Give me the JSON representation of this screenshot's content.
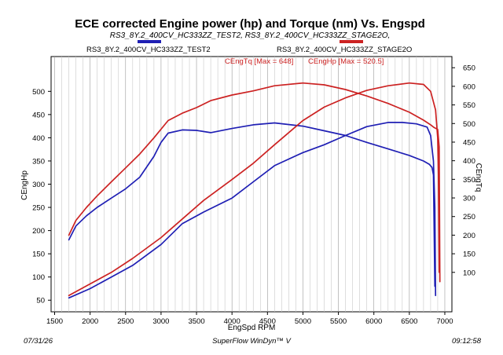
{
  "chart_data": {
    "type": "line",
    "title": "ECE corrected Engine power (hp) and Torque (nm) Vs. Engspd",
    "subtitle": "RS3_8Y.2_400CV_HC333ZZ_TEST2, RS3_8Y.2_400CV_HC333ZZ_STAGE2O,",
    "xlabel": "EngSpd RPM",
    "ylabel_left": "CEngHp",
    "ylabel_right": "CEngTq",
    "xlim": [
      1450,
      7100
    ],
    "ylim_left": [
      25,
      575
    ],
    "ylim_right": [
      -6,
      680
    ],
    "x_ticks": [
      1500,
      2000,
      2500,
      3000,
      3500,
      4000,
      4500,
      5000,
      5500,
      6000,
      6500,
      7000
    ],
    "y_ticks_left": [
      50,
      100,
      150,
      200,
      250,
      300,
      350,
      400,
      450,
      500
    ],
    "y_ticks_right": [
      100,
      150,
      200,
      250,
      300,
      350,
      400,
      450,
      500,
      550,
      600,
      650
    ],
    "grid": true,
    "legend": [
      {
        "name": "RS3_8Y.2_400CV_HC333ZZ_TEST2",
        "color": "#1f1fb4"
      },
      {
        "name": "RS3_8Y.2_400CV_HC333ZZ_STAGE2O",
        "color": "#cc2222"
      }
    ],
    "annotations": [
      {
        "text": "CEngTq [Max = 648]",
        "color": "#cc2222"
      },
      {
        "text": "CEngHp [Max = 520.5]",
        "color": "#cc2222"
      }
    ],
    "series": [
      {
        "id": "stage2-torque",
        "color": "#cc2222",
        "axis": "left",
        "x": [
          1700,
          1800,
          1950,
          2100,
          2300,
          2500,
          2700,
          2900,
          3100,
          3300,
          3500,
          3700,
          4000,
          4300,
          4600,
          5000,
          5300,
          5600,
          5900,
          6200,
          6500,
          6700,
          6800,
          6850,
          6900,
          6920,
          6930
        ],
        "y": [
          190,
          222,
          250,
          275,
          305,
          335,
          365,
          400,
          437,
          453,
          465,
          480,
          492,
          501,
          512,
          518,
          514,
          504,
          490,
          474,
          455,
          438,
          428,
          422,
          418,
          380,
          90
        ]
      },
      {
        "id": "test2-torque",
        "color": "#1f1fb4",
        "axis": "left",
        "x": [
          1700,
          1800,
          1950,
          2100,
          2300,
          2500,
          2700,
          2900,
          3000,
          3100,
          3300,
          3500,
          3700,
          4000,
          4300,
          4600,
          5000,
          5300,
          5600,
          5900,
          6200,
          6500,
          6700,
          6780,
          6820,
          6840,
          6860
        ],
        "y": [
          180,
          210,
          232,
          250,
          270,
          290,
          315,
          360,
          390,
          410,
          417,
          416,
          411,
          420,
          428,
          432,
          425,
          415,
          405,
          390,
          376,
          362,
          350,
          343,
          336,
          320,
          80
        ]
      },
      {
        "id": "stage2-power",
        "color": "#cc2222",
        "axis": "left",
        "x": [
          1700,
          2000,
          2300,
          2600,
          3000,
          3300,
          3600,
          4000,
          4300,
          4600,
          5000,
          5300,
          5600,
          5900,
          6200,
          6500,
          6700,
          6800,
          6870,
          6900,
          6910,
          6920
        ],
        "y": [
          60,
          85,
          110,
          140,
          185,
          225,
          265,
          310,
          345,
          385,
          437,
          466,
          486,
          502,
          512,
          518,
          515,
          500,
          460,
          400,
          320,
          110
        ]
      },
      {
        "id": "test2-power",
        "color": "#1f1fb4",
        "axis": "left",
        "x": [
          1700,
          2000,
          2300,
          2600,
          3000,
          3300,
          3600,
          4000,
          4300,
          4600,
          5000,
          5300,
          5600,
          5900,
          6200,
          6400,
          6600,
          6750,
          6800,
          6840,
          6860,
          6870
        ],
        "y": [
          55,
          75,
          100,
          125,
          170,
          215,
          240,
          270,
          305,
          340,
          368,
          385,
          405,
          424,
          433,
          433,
          430,
          423,
          405,
          350,
          250,
          60
        ]
      }
    ]
  },
  "footer": {
    "date": "07/31/26",
    "software": "SuperFlow WinDyn™ V",
    "time": "09:12:58"
  }
}
